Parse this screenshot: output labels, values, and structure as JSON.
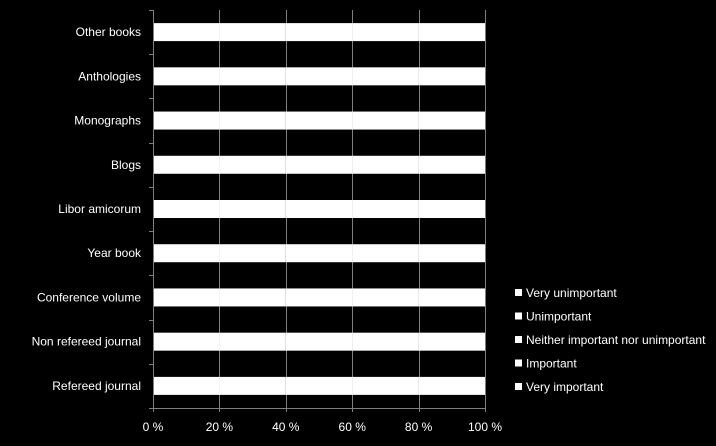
{
  "chart_data": {
    "type": "bar",
    "orientation": "horizontal",
    "stacked": true,
    "percent_scale": true,
    "categories": [
      "Refereed journal",
      "Non refereed journal",
      "Conference volume",
      "Year book",
      "Libor amicorum",
      "Blogs",
      "Monographs",
      "Anthologies",
      "Other books"
    ],
    "series": [
      {
        "name": "Very important",
        "color": "#ffffff",
        "values": [
          20,
          20,
          20,
          20,
          20,
          20,
          20,
          20,
          20
        ]
      },
      {
        "name": "Important",
        "color": "#ffffff",
        "values": [
          20,
          20,
          20,
          20,
          20,
          20,
          20,
          20,
          20
        ]
      },
      {
        "name": "Neither important nor unimportant",
        "color": "#ffffff",
        "values": [
          20,
          20,
          20,
          20,
          20,
          20,
          20,
          20,
          20
        ]
      },
      {
        "name": "Unimportant",
        "color": "#ffffff",
        "values": [
          20,
          20,
          20,
          20,
          20,
          20,
          20,
          20,
          20
        ]
      },
      {
        "name": "Very unimportant",
        "color": "#ffffff",
        "values": [
          20,
          20,
          20,
          20,
          20,
          20,
          20,
          20,
          20
        ]
      }
    ],
    "xlim": [
      0,
      100
    ],
    "x_ticks": [
      "0 %",
      "20 %",
      "40 %",
      "60 %",
      "80 %",
      "100 %"
    ],
    "grid": "vertical",
    "legend_position": "right",
    "background": "#000000",
    "gridline_color": "#7f7f7f"
  }
}
